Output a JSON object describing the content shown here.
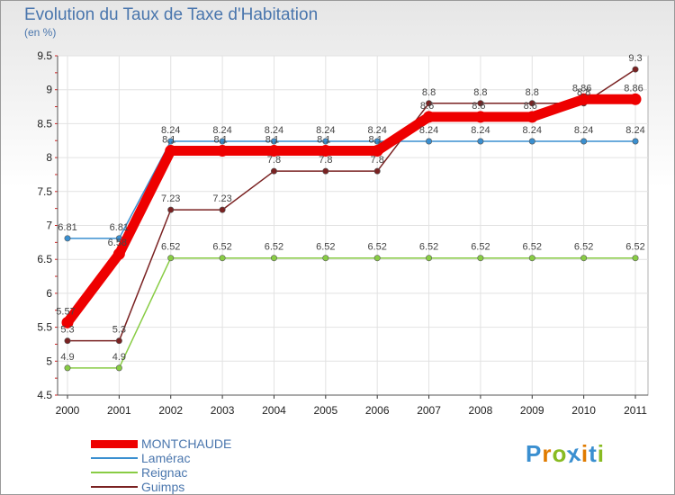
{
  "chart_data": {
    "type": "line",
    "title": "Evolution du Taux de Taxe d'Habitation",
    "subtitle": "(en %)",
    "xlabel": "",
    "ylabel": "",
    "categories": [
      "2000",
      "2001",
      "2002",
      "2003",
      "2004",
      "2005",
      "2006",
      "2007",
      "2008",
      "2009",
      "2010",
      "2011"
    ],
    "ylim": [
      4.5,
      9.5
    ],
    "yticks": [
      "4.5",
      "5",
      "5.5",
      "6",
      "6.5",
      "7",
      "7.5",
      "8",
      "8.5",
      "9",
      "9.5"
    ],
    "grid": true,
    "legend_position": "bottom-left",
    "series": [
      {
        "name": "MONTCHAUDE",
        "color": "#ee0000",
        "values": [
          5.57,
          6.58,
          8.1,
          8.1,
          8.1,
          8.1,
          8.1,
          8.6,
          8.6,
          8.6,
          8.86,
          8.86
        ],
        "labels": [
          "5.57",
          "6.58",
          "8.1",
          "8.1",
          "8.1",
          "8.1",
          "8.1",
          "8.6",
          "8.6",
          "8.6",
          "8.86",
          "8.86"
        ]
      },
      {
        "name": "Lamérac",
        "color": "#3a8fd0",
        "values": [
          6.81,
          6.81,
          8.24,
          8.24,
          8.24,
          8.24,
          8.24,
          8.24,
          8.24,
          8.24,
          8.24,
          8.24
        ],
        "labels": [
          "6.81",
          "6.81",
          "8.24",
          "8.24",
          "8.24",
          "8.24",
          "8.24",
          "8.24",
          "8.24",
          "8.24",
          "8.24",
          "8.24"
        ]
      },
      {
        "name": "Reignac",
        "color": "#88cc44",
        "values": [
          4.9,
          4.9,
          6.52,
          6.52,
          6.52,
          6.52,
          6.52,
          6.52,
          6.52,
          6.52,
          6.52,
          6.52
        ],
        "labels": [
          "4.9",
          "4.9",
          "6.52",
          "6.52",
          "6.52",
          "6.52",
          "6.52",
          "6.52",
          "6.52",
          "6.52",
          "6.52",
          "6.52"
        ]
      },
      {
        "name": "Guimps",
        "color": "#7a2222",
        "values": [
          5.3,
          5.3,
          7.23,
          7.23,
          7.8,
          7.8,
          7.8,
          8.8,
          8.8,
          8.8,
          8.8,
          9.3
        ],
        "labels": [
          "5.3",
          "5.3",
          "7.23",
          "7.23",
          "7.8",
          "7.8",
          "7.8",
          "8.8",
          "8.8",
          "8.8",
          "8.8",
          "9.3"
        ]
      }
    ]
  },
  "brand": {
    "letters": [
      "P",
      "r",
      "o",
      "x",
      "i",
      "t",
      "i"
    ],
    "colors": [
      "#3a8fd0",
      "#e07b00",
      "#88bb22",
      "#3a8fd0",
      "#e07b00",
      "#3a8fd0",
      "#88bb22"
    ]
  }
}
